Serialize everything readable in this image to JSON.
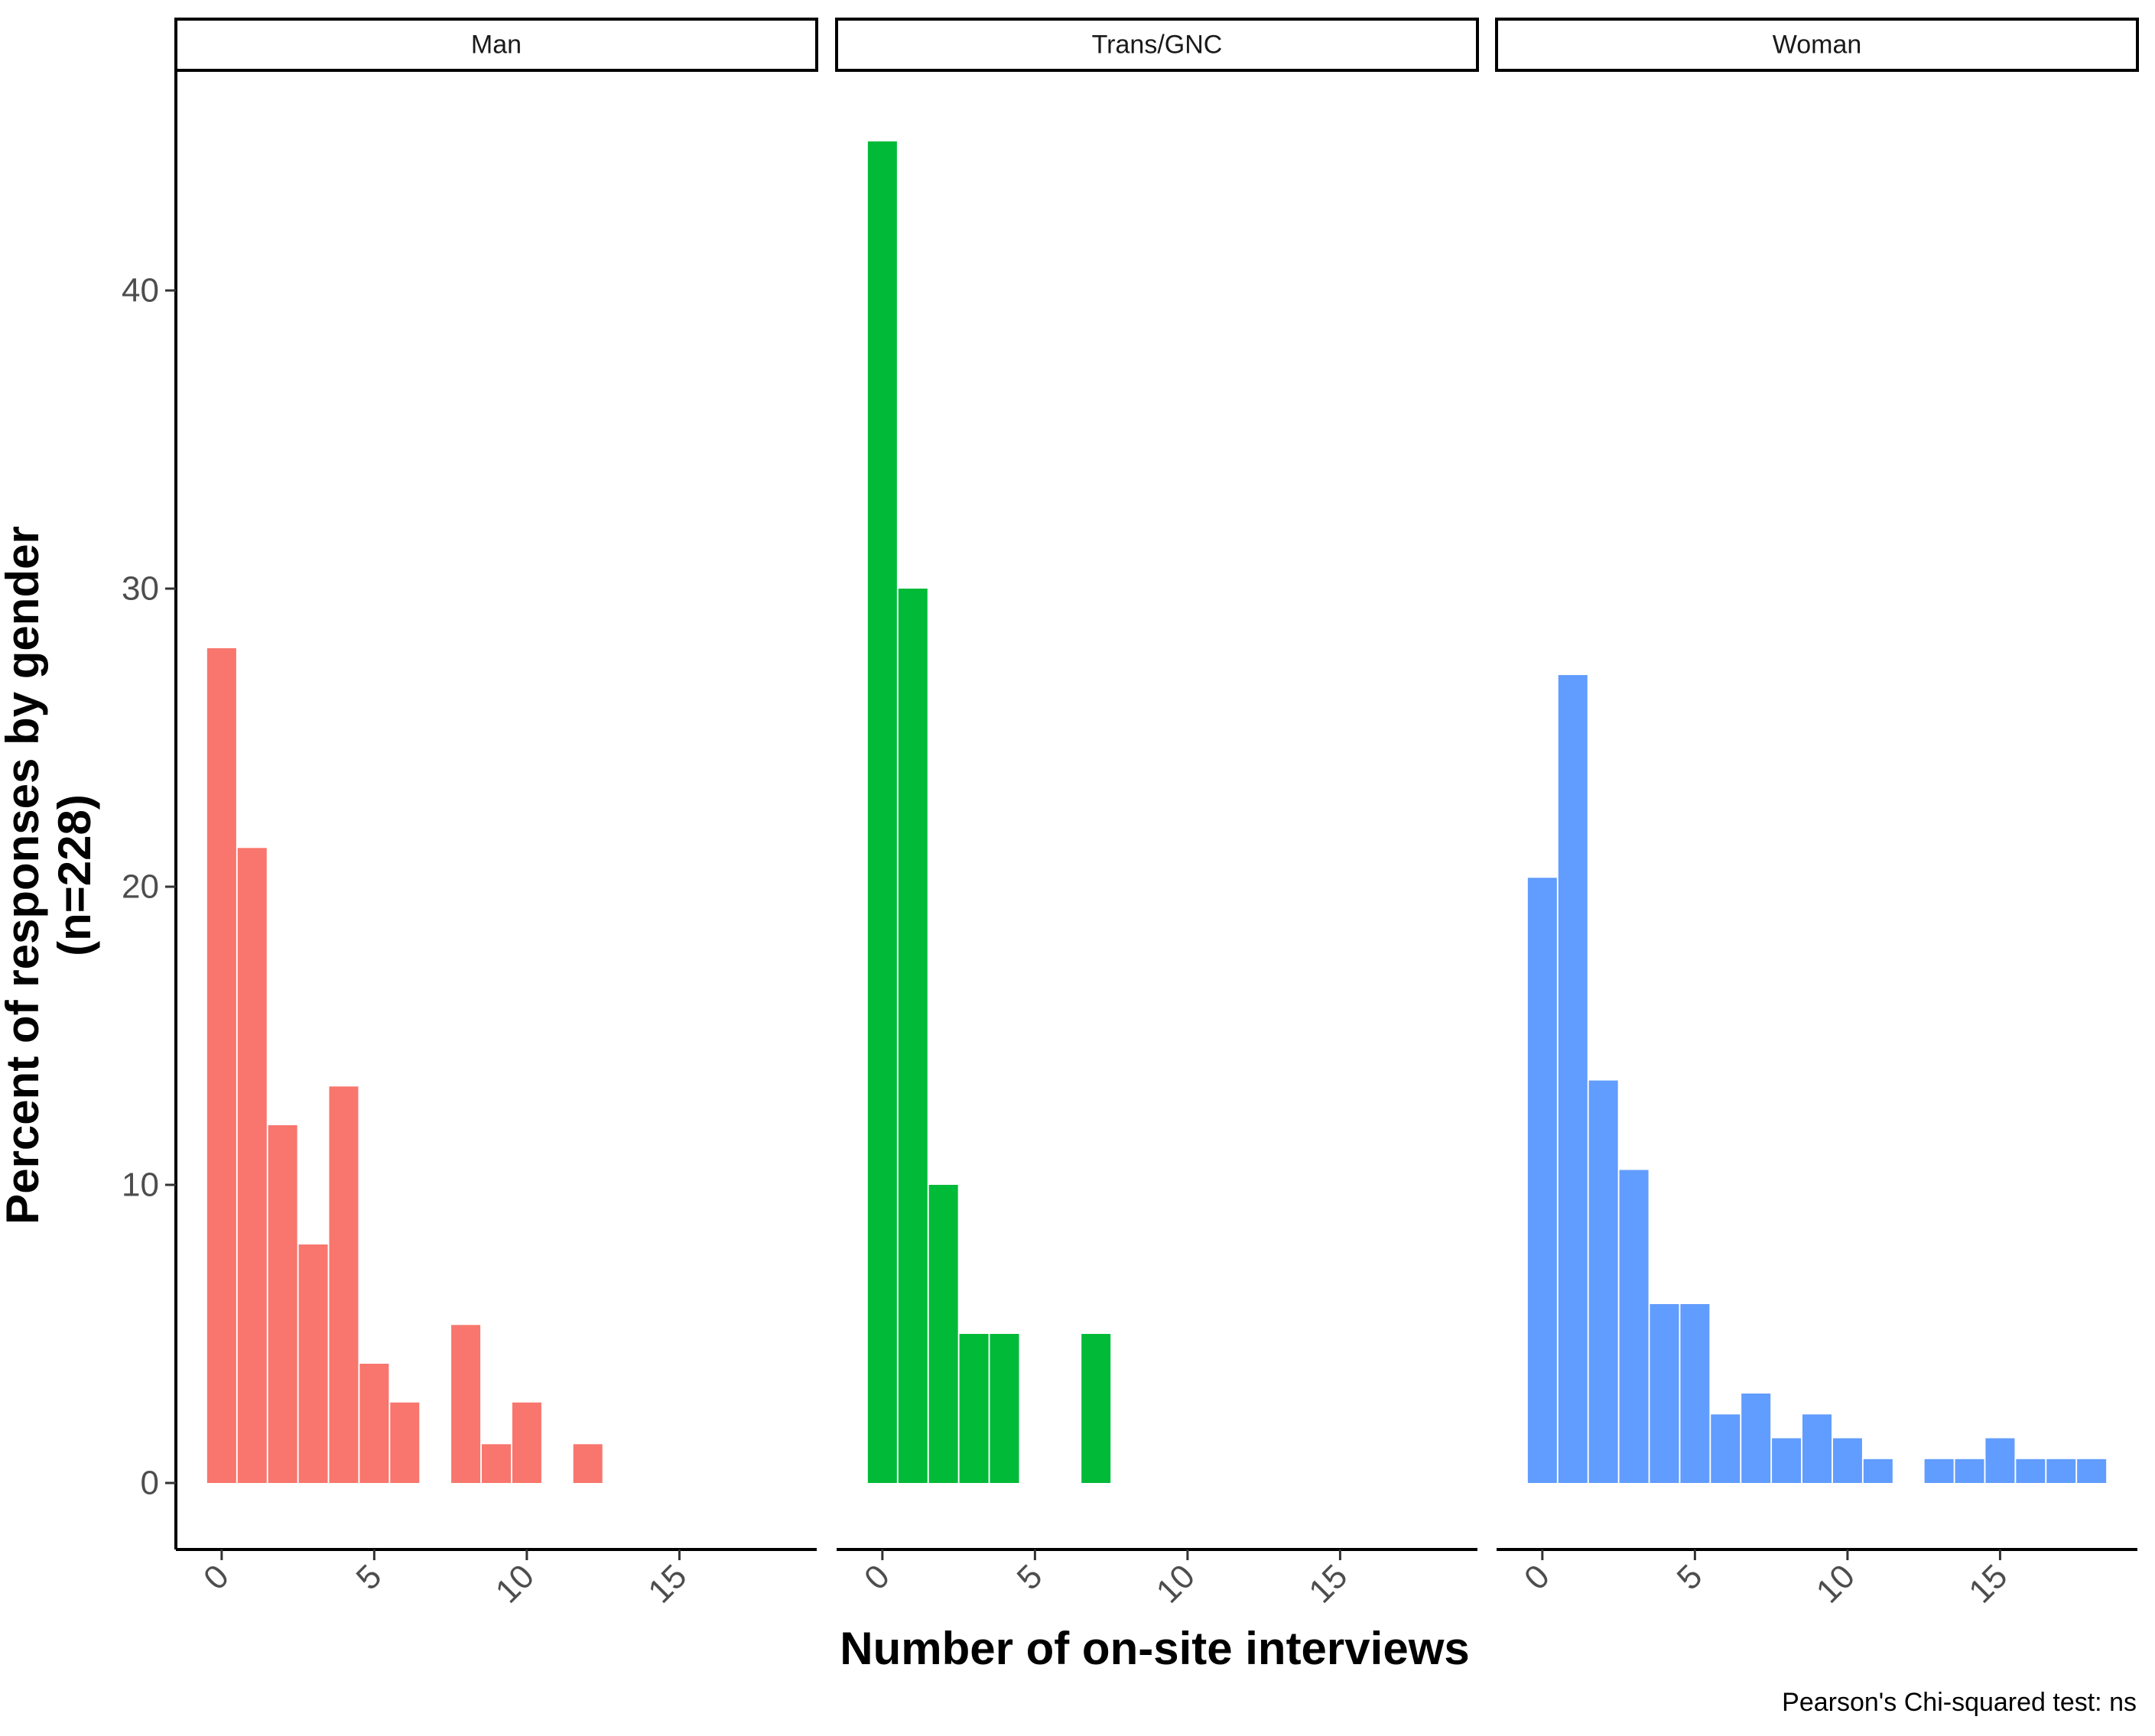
{
  "chart_data": {
    "type": "bar",
    "facet_by": "gender",
    "xlabel": "Number of on-site interviews",
    "ylabel": "Percent of responses by gender",
    "ylabel_line2": "(n=228)",
    "caption": "Pearson's Chi-squared test: ns",
    "xlim": [
      -1.5,
      19.5
    ],
    "ylim": [
      0,
      47
    ],
    "x_ticks": [
      0,
      5,
      10,
      15
    ],
    "y_ticks": [
      0,
      10,
      20,
      30,
      40
    ],
    "grid": false,
    "facets": [
      {
        "name": "Man",
        "color": "#F8766D",
        "x": [
          0,
          1,
          2,
          3,
          4,
          5,
          6,
          8,
          9,
          10,
          12
        ],
        "values": [
          28.0,
          21.3,
          12.0,
          8.0,
          13.3,
          4.0,
          2.7,
          5.3,
          1.3,
          2.7,
          1.3
        ]
      },
      {
        "name": "Trans/GNC",
        "color": "#00BA38",
        "x": [
          0,
          1,
          2,
          3,
          4,
          7
        ],
        "values": [
          45.0,
          30.0,
          10.0,
          5.0,
          5.0,
          5.0
        ]
      },
      {
        "name": "Woman",
        "color": "#619CFF",
        "x": [
          0,
          1,
          2,
          3,
          4,
          5,
          6,
          7,
          8,
          9,
          10,
          11,
          13,
          14,
          15,
          16,
          17,
          18
        ],
        "values": [
          20.3,
          27.1,
          13.5,
          10.5,
          6.0,
          6.0,
          2.3,
          3.0,
          1.5,
          2.3,
          1.5,
          0.8,
          0.8,
          0.8,
          1.5,
          0.8,
          0.8,
          0.8
        ]
      }
    ]
  }
}
